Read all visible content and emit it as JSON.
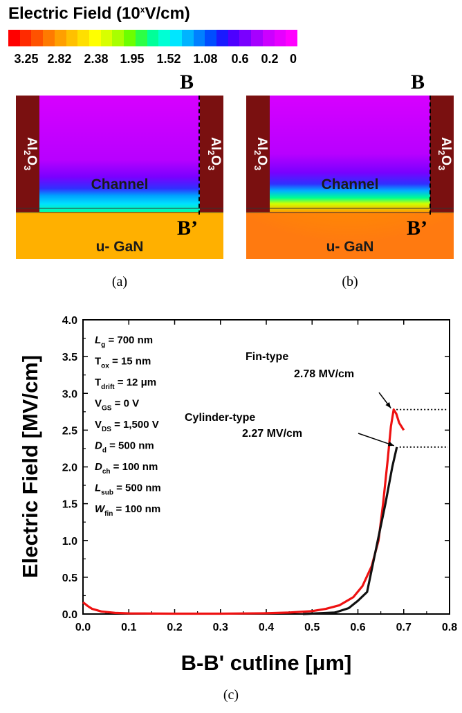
{
  "colorbar": {
    "title_main": "Electric Field (10",
    "title_sup": "x",
    "title_unit": "V/cm)",
    "colors": [
      "#ff0000",
      "#ff2a00",
      "#ff5200",
      "#ff7a00",
      "#ff9f00",
      "#ffc000",
      "#ffdf00",
      "#ffff00",
      "#d8ff00",
      "#a8ff00",
      "#6cff00",
      "#2cff46",
      "#00ff99",
      "#00ffd4",
      "#00e6ff",
      "#00b3ff",
      "#0080ff",
      "#004dff",
      "#1a1aff",
      "#4d00ff",
      "#7a00ff",
      "#a600ff",
      "#cc00ff",
      "#e600ff",
      "#ff00ff"
    ],
    "ticks": [
      "3.25",
      "2.82",
      "2.38",
      "1.95",
      "1.52",
      "1.08",
      "0.6",
      "0.2",
      "0"
    ]
  },
  "panels": {
    "oxide_main": "Al",
    "oxide_sub1": "2",
    "oxide_mid": "O",
    "oxide_sub2": "3",
    "channel_label": "Channel",
    "substrate_label": "u- GaN",
    "b_label": "B",
    "b_prime_label": "B’",
    "caption_a": "(a)",
    "caption_b": "(b)",
    "caption_c": "(c)"
  },
  "params": [
    {
      "main": "L",
      "sub": "g",
      "value": " = 700 nm",
      "italic": true
    },
    {
      "main": "T",
      "sub": "ox",
      "value": " = 15 nm",
      "italic": false
    },
    {
      "main": "T",
      "sub": "drift",
      "value": " = 12 μm",
      "italic": false
    },
    {
      "main": "V",
      "sub": "GS",
      "value": " = 0 V",
      "italic": false
    },
    {
      "main": "V",
      "sub": "DS",
      "value": " = 1,500 V",
      "italic": false
    },
    {
      "main": "D",
      "sub": "d",
      "value": " = 500 nm",
      "italic": true
    },
    {
      "main": "D",
      "sub": "ch",
      "value": " = 100 nm",
      "italic": true
    },
    {
      "main": "L",
      "sub": "sub",
      "value": " = 500 nm",
      "italic": true
    },
    {
      "main": "W",
      "sub": "fin",
      "value": " = 100 nm",
      "italic": true
    }
  ],
  "chart_data": {
    "type": "line",
    "xlabel": "B-B' cutline [μm]",
    "ylabel": "Electric Field [MV/cm]",
    "xlim": [
      0.0,
      0.8
    ],
    "ylim": [
      0.0,
      4.0
    ],
    "xticks": [
      "0.0",
      "0.1",
      "0.2",
      "0.3",
      "0.4",
      "0.5",
      "0.6",
      "0.7",
      "0.8"
    ],
    "yticks": [
      "0.0",
      "0.5",
      "1.0",
      "1.5",
      "2.0",
      "2.5",
      "3.0",
      "3.5",
      "4.0"
    ],
    "series": [
      {
        "name": "Fin-type",
        "color": "#ee1111",
        "points": [
          [
            0.0,
            0.16
          ],
          [
            0.01,
            0.11
          ],
          [
            0.02,
            0.07
          ],
          [
            0.04,
            0.035
          ],
          [
            0.07,
            0.015
          ],
          [
            0.1,
            0.008
          ],
          [
            0.2,
            0.005
          ],
          [
            0.3,
            0.005
          ],
          [
            0.4,
            0.01
          ],
          [
            0.45,
            0.02
          ],
          [
            0.5,
            0.04
          ],
          [
            0.53,
            0.07
          ],
          [
            0.56,
            0.12
          ],
          [
            0.59,
            0.23
          ],
          [
            0.61,
            0.38
          ],
          [
            0.63,
            0.65
          ],
          [
            0.645,
            1.0
          ],
          [
            0.655,
            1.5
          ],
          [
            0.665,
            2.1
          ],
          [
            0.672,
            2.55
          ],
          [
            0.678,
            2.78
          ],
          [
            0.684,
            2.72
          ],
          [
            0.69,
            2.6
          ],
          [
            0.7,
            2.5
          ]
        ]
      },
      {
        "name": "Cylinder-type",
        "color": "#111111",
        "points": [
          [
            0.48,
            0.0
          ],
          [
            0.55,
            0.02
          ],
          [
            0.58,
            0.08
          ],
          [
            0.6,
            0.18
          ],
          [
            0.62,
            0.3
          ],
          [
            0.64,
            0.9
          ],
          [
            0.66,
            1.5
          ],
          [
            0.675,
            2.0
          ],
          [
            0.685,
            2.27
          ]
        ]
      }
    ],
    "annotations": [
      {
        "label": "Fin-type",
        "value": "2.78 MV/cm"
      },
      {
        "label": "Cylinder-type",
        "value": "2.27 MV/cm"
      }
    ]
  }
}
